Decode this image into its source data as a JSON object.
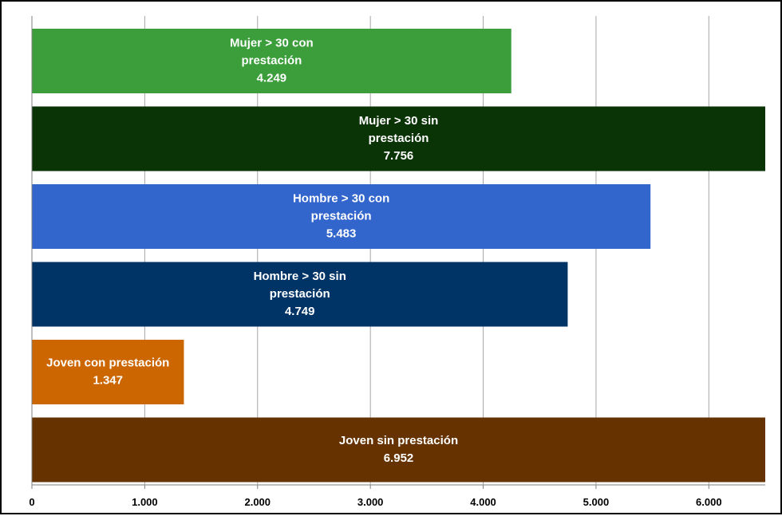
{
  "chart_data": {
    "type": "bar",
    "orientation": "horizontal",
    "categories": [
      "Mujer > 30 con prestación",
      "Mujer > 30 sin prestación",
      "Hombre > 30 con prestación",
      "Hombre > 30 sin prestación",
      "Joven con prestación",
      "Joven sin prestación"
    ],
    "label_lines": [
      [
        "Mujer > 30 con",
        "prestación"
      ],
      [
        "Mujer > 30 sin",
        "prestación"
      ],
      [
        "Hombre > 30 con",
        "prestación"
      ],
      [
        "Hombre > 30 sin",
        "prestación"
      ],
      [
        "Joven con prestación"
      ],
      [
        "Joven sin prestación"
      ]
    ],
    "values": [
      4249,
      7756,
      5483,
      4749,
      1347,
      6952
    ],
    "value_labels": [
      "4.249",
      "7.756",
      "5.483",
      "4.749",
      "1.347",
      "6.952"
    ],
    "colors": [
      "#3b9e3b",
      "#0a3306",
      "#3366cc",
      "#003366",
      "#cc6600",
      "#663300"
    ],
    "xlim": [
      0,
      6500
    ],
    "xticks": [
      0,
      1000,
      2000,
      3000,
      4000,
      5000,
      6000
    ],
    "xtick_labels": [
      "0",
      "1.000",
      "2.000",
      "3.000",
      "4.000",
      "5.000",
      "6.000"
    ],
    "grid": true,
    "title": "",
    "xlabel": "",
    "ylabel": ""
  }
}
